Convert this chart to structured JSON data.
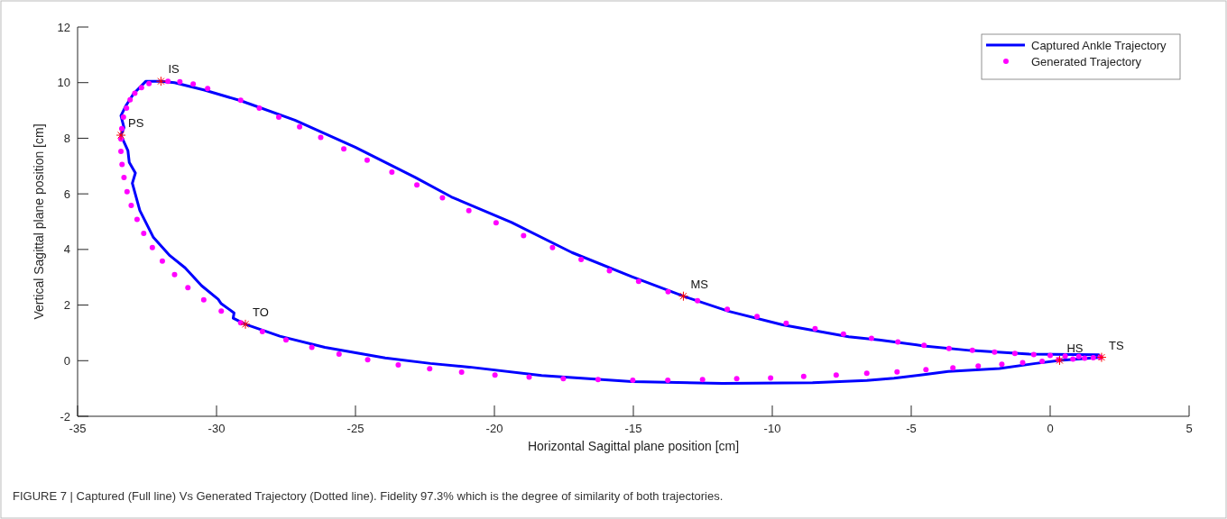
{
  "chart_data": {
    "type": "line",
    "xlabel": "Horizontal Sagittal plane position [cm]",
    "ylabel": "Vertical Sagittal plane position [cm]",
    "xlim": [
      -35,
      5
    ],
    "xticks": [
      -35,
      -30,
      -25,
      -20,
      -15,
      -10,
      -5,
      0,
      5
    ],
    "ylim": [
      -2,
      12
    ],
    "yticks": [
      -2,
      0,
      2,
      4,
      6,
      8,
      10,
      12
    ],
    "grid": false,
    "legend": "top right",
    "series": [
      {
        "name": "Captured Ankle Trajectory",
        "type": "line",
        "color": "#0000ff",
        "marker": "none",
        "line_style": "solid",
        "x": [
          1.75,
          -0.75,
          -2.91,
          -4.54,
          -6.16,
          -7.25,
          -9.63,
          -11.58,
          -13.2,
          -15.05,
          -17.21,
          -19.38,
          -21.55,
          -22.85,
          -25.01,
          -27.18,
          -29.13,
          -30.43,
          -31.51,
          -32.0,
          -32.54,
          -32.97,
          -33.25,
          -33.44,
          -33.33,
          -33.44,
          -33.19,
          -33.14,
          -32.92,
          -33.03,
          -32.76,
          -32.27,
          -31.68,
          -31.13,
          -30.54,
          -29.94,
          -29.83,
          -29.37,
          -29.4,
          -28.96,
          -27.72,
          -26.1,
          -23.93,
          -22.3,
          -20.9,
          -18.3,
          -15.05,
          -11.8,
          -8.55,
          -6.6,
          -5.62,
          -4.54,
          -3.67,
          -1.83,
          -0.53,
          0.34,
          1.85
        ],
        "values": [
          0.21,
          0.24,
          0.37,
          0.53,
          0.75,
          0.86,
          1.29,
          1.78,
          2.32,
          3.02,
          3.89,
          4.97,
          5.89,
          6.59,
          7.68,
          8.65,
          9.35,
          9.73,
          10.0,
          10.05,
          10.05,
          9.62,
          9.19,
          8.81,
          8.38,
          8.11,
          7.56,
          7.13,
          6.75,
          6.38,
          5.4,
          4.43,
          3.78,
          3.34,
          2.7,
          2.21,
          2.05,
          1.72,
          1.53,
          1.31,
          0.88,
          0.48,
          0.1,
          -0.1,
          -0.23,
          -0.53,
          -0.75,
          -0.82,
          -0.79,
          -0.71,
          -0.63,
          -0.5,
          -0.39,
          -0.28,
          -0.1,
          0.01,
          0.12
        ]
      },
      {
        "name": "Generated Trajectory",
        "type": "scatter",
        "color": "#ff00ff",
        "marker": "circle",
        "x": [
          -33.35,
          -33.41,
          -33.44,
          -33.44,
          -33.4,
          -33.33,
          -33.22,
          -33.07,
          -32.86,
          -32.62,
          -32.31,
          -31.95,
          -31.51,
          -31.03,
          -30.46,
          -29.83,
          -29.13,
          -28.35,
          -27.5,
          -26.57,
          -25.59,
          -24.56,
          -23.46,
          -22.33,
          -21.18,
          -19.98,
          -18.75,
          -17.52,
          -16.27,
          -15.02,
          -13.76,
          -12.51,
          -11.28,
          -10.06,
          -8.87,
          -7.7,
          -6.6,
          -5.51,
          -4.47,
          -3.5,
          -2.59,
          -1.74,
          -0.99,
          -0.29,
          0.3,
          0.82,
          1.24,
          1.55,
          1.8,
          1.03,
          0.54,
          0.0,
          -0.59,
          -1.27,
          -2.0,
          -2.8,
          -3.64,
          -4.54,
          -5.48,
          -6.43,
          -7.44,
          -8.46,
          -9.5,
          -10.55,
          -11.62,
          -12.69,
          -13.75,
          -14.81,
          -15.86,
          -16.88,
          -17.91,
          -18.95,
          -19.94,
          -20.92,
          -21.87,
          -22.79,
          -23.69,
          -24.58,
          -25.42,
          -26.25,
          -27.01,
          -27.76,
          -28.46,
          -29.13,
          -30.32,
          -30.84,
          -31.32,
          -31.75,
          -32.43,
          -32.7,
          -32.94,
          -33.11,
          -33.24
        ],
        "values": [
          8.76,
          8.35,
          7.97,
          7.53,
          7.06,
          6.59,
          6.08,
          5.58,
          5.08,
          4.58,
          4.07,
          3.58,
          3.1,
          2.63,
          2.19,
          1.78,
          1.36,
          1.05,
          0.75,
          0.48,
          0.24,
          0.03,
          -0.15,
          -0.29,
          -0.41,
          -0.52,
          -0.59,
          -0.65,
          -0.68,
          -0.7,
          -0.7,
          -0.68,
          -0.65,
          -0.62,
          -0.57,
          -0.52,
          -0.45,
          -0.4,
          -0.32,
          -0.26,
          -0.19,
          -0.13,
          -0.07,
          -0.02,
          0.03,
          0.06,
          0.09,
          0.11,
          0.12,
          0.15,
          0.16,
          0.19,
          0.22,
          0.26,
          0.31,
          0.37,
          0.44,
          0.55,
          0.67,
          0.8,
          0.96,
          1.15,
          1.35,
          1.59,
          1.85,
          2.16,
          2.48,
          2.85,
          3.23,
          3.64,
          4.07,
          4.5,
          4.96,
          5.4,
          5.86,
          6.32,
          6.78,
          7.21,
          7.62,
          8.03,
          8.41,
          8.76,
          9.08,
          9.37,
          9.79,
          9.95,
          10.03,
          10.05,
          9.97,
          9.82,
          9.62,
          9.38,
          9.08
        ]
      },
      {
        "type": "scatter",
        "color": "#ff0000",
        "marker": "cross",
        "x": [
          -32.0,
          -33.44,
          -28.96,
          -13.2,
          0.34,
          1.85
        ],
        "values": [
          10.05,
          8.11,
          1.31,
          2.32,
          0.01,
          0.12
        ]
      }
    ],
    "annotations": [
      {
        "text": "IS",
        "x": -32.0,
        "y": 10.05
      },
      {
        "text": "PS",
        "x": -33.44,
        "y": 8.11
      },
      {
        "text": "TO",
        "x": -28.96,
        "y": 1.31
      },
      {
        "text": "MS",
        "x": -13.2,
        "y": 2.32
      },
      {
        "text": "HS",
        "x": 0.34,
        "y": 0.01
      },
      {
        "text": "TS",
        "x": 1.85,
        "y": 0.12
      },
      "FIGURE 7 | Captured (Full line) Vs Generated Trajectory (Dotted line). Fidelity 97.3% which is the degree of similarity of both trajectories."
    ]
  }
}
